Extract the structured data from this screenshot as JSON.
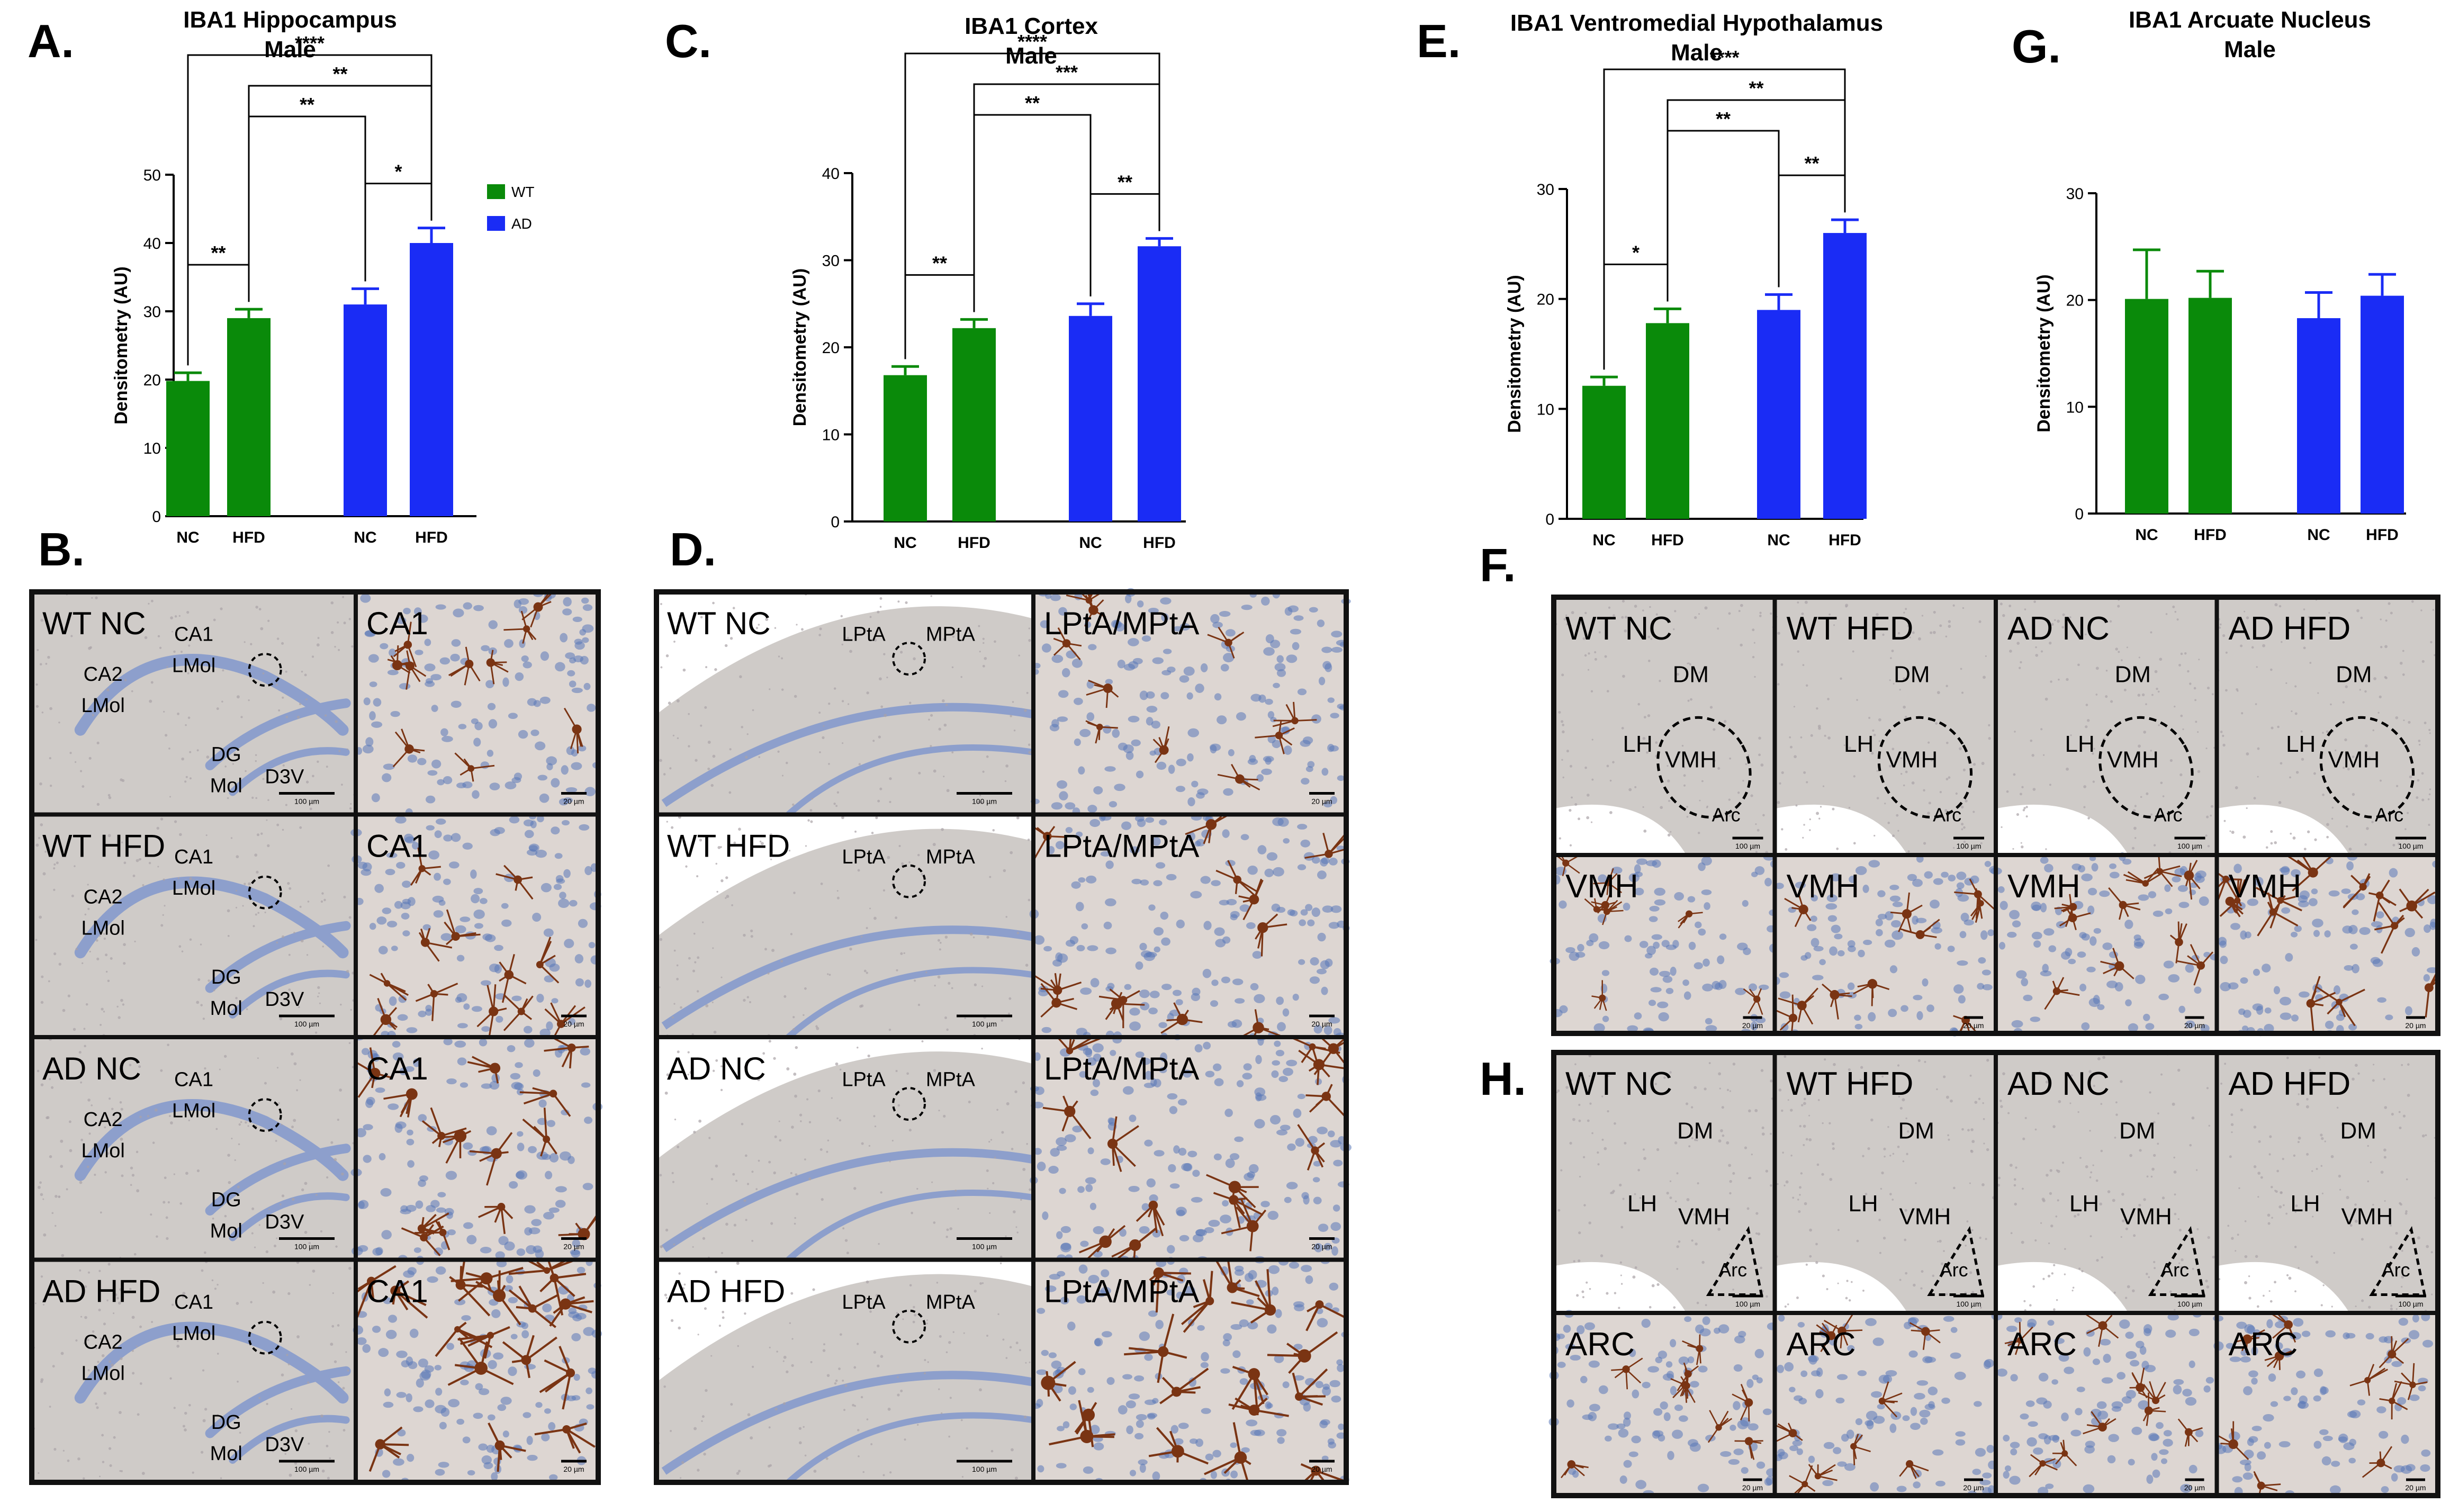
{
  "colors": {
    "wt": "#0a8a0a",
    "ad": "#1a2cf5",
    "axis": "#000000",
    "tissue_bg": "#cfcbc8",
    "tissue_blue": "#8d9fcc",
    "stain_brown": "#7a3413",
    "nucleus": "#5a78b8",
    "border": "#111111"
  },
  "chart_data": [
    {
      "id": "A",
      "panel_letter": "A.",
      "type": "bar",
      "title": [
        "IBA1 Hippocampus",
        "Male"
      ],
      "ylabel": "Densitometry (AU)",
      "ylim": [
        0,
        50
      ],
      "yticks": [
        0,
        10,
        20,
        30,
        40,
        50
      ],
      "categories": [
        "NC",
        "HFD",
        "NC",
        "HFD"
      ],
      "groups": [
        "WT",
        "WT",
        "AD",
        "AD"
      ],
      "values": [
        19.8,
        29.0,
        31.0,
        40.0
      ],
      "errors": [
        1.2,
        1.3,
        2.3,
        2.2
      ],
      "legend": [
        {
          "name": "WT",
          "group": "WT"
        },
        {
          "name": "AD",
          "group": "AD"
        }
      ],
      "significance": [
        {
          "pair": [
            0,
            1
          ],
          "label": "**"
        },
        {
          "pair": [
            2,
            3
          ],
          "label": "*"
        },
        {
          "pair": [
            1,
            2
          ],
          "label": "**"
        },
        {
          "pair": [
            1,
            3
          ],
          "label": "**"
        },
        {
          "pair": [
            0,
            3
          ],
          "label": "****"
        }
      ]
    },
    {
      "id": "C",
      "panel_letter": "C.",
      "type": "bar",
      "title": [
        "IBA1 Cortex",
        "Male"
      ],
      "ylabel": "Densitometry (AU)",
      "ylim": [
        0,
        40
      ],
      "yticks": [
        0,
        10,
        20,
        30,
        40
      ],
      "categories": [
        "NC",
        "HFD",
        "NC",
        "HFD"
      ],
      "groups": [
        "WT",
        "WT",
        "AD",
        "AD"
      ],
      "values": [
        16.8,
        22.2,
        23.6,
        31.6
      ],
      "errors": [
        1.0,
        1.0,
        1.4,
        0.9
      ],
      "legend": [],
      "significance": [
        {
          "pair": [
            0,
            1
          ],
          "label": "**"
        },
        {
          "pair": [
            2,
            3
          ],
          "label": "**"
        },
        {
          "pair": [
            1,
            2
          ],
          "label": "**"
        },
        {
          "pair": [
            1,
            3
          ],
          "label": "***"
        },
        {
          "pair": [
            0,
            3
          ],
          "label": "****"
        }
      ]
    },
    {
      "id": "E",
      "panel_letter": "E.",
      "type": "bar",
      "title": [
        "IBA1 Ventromedial Hypothalamus",
        "Male"
      ],
      "ylabel": "Densitometry (AU)",
      "ylim": [
        0,
        30
      ],
      "yticks": [
        0,
        10,
        20,
        30
      ],
      "categories": [
        "NC",
        "HFD",
        "NC",
        "HFD"
      ],
      "groups": [
        "WT",
        "WT",
        "AD",
        "AD"
      ],
      "values": [
        12.1,
        17.8,
        19.0,
        26.0
      ],
      "errors": [
        0.8,
        1.3,
        1.4,
        1.2
      ],
      "legend": [],
      "significance": [
        {
          "pair": [
            0,
            1
          ],
          "label": "*"
        },
        {
          "pair": [
            2,
            3
          ],
          "label": "**"
        },
        {
          "pair": [
            1,
            2
          ],
          "label": "**"
        },
        {
          "pair": [
            1,
            3
          ],
          "label": "**"
        },
        {
          "pair": [
            0,
            3
          ],
          "label": "****"
        }
      ]
    },
    {
      "id": "G",
      "panel_letter": "G.",
      "type": "bar",
      "title": [
        "IBA1 Arcuate Nucleus",
        "Male"
      ],
      "ylabel": "Densitometry (AU)",
      "ylim": [
        0,
        30
      ],
      "yticks": [
        0,
        10,
        20,
        30
      ],
      "categories": [
        "NC",
        "HFD",
        "NC",
        "HFD"
      ],
      "groups": [
        "WT",
        "WT",
        "AD",
        "AD"
      ],
      "values": [
        20.1,
        20.2,
        18.3,
        20.4
      ],
      "errors": [
        4.6,
        2.5,
        2.4,
        2.0
      ],
      "legend": [],
      "significance": []
    }
  ],
  "micrographs": [
    {
      "id": "B",
      "panel_letter": "B.",
      "rows": [
        {
          "label": "WT NC",
          "inset_label": "CA1",
          "annotations": [
            "CA1",
            "LMol",
            "CA2",
            "LMol",
            "DG",
            "Mol",
            "D3V"
          ],
          "scale": "100 µm",
          "inset_scale": "20 µm",
          "stain": 0.9
        },
        {
          "label": "WT HFD",
          "inset_label": "CA1",
          "annotations": [
            "CA1",
            "LMol",
            "CA2",
            "LMol",
            "DG",
            "Mol",
            "D3V"
          ],
          "scale": "100 µm",
          "inset_scale": "20 µm",
          "stain": 1.2
        },
        {
          "label": "AD NC",
          "inset_label": "CA1",
          "annotations": [
            "CA1",
            "LMol",
            "CA2",
            "LMol",
            "DG",
            "Mol",
            "D3V"
          ],
          "scale": "100 µm",
          "inset_scale": "20 µm",
          "stain": 1.5
        },
        {
          "label": "AD HFD",
          "inset_label": "CA1",
          "annotations": [
            "CA1",
            "LMol",
            "CA2",
            "LMol",
            "DG",
            "Mol",
            "D3V"
          ],
          "scale": "100 µm",
          "inset_scale": "20 µm",
          "stain": 2.0
        }
      ]
    },
    {
      "id": "D",
      "panel_letter": "D.",
      "rows": [
        {
          "label": "WT NC",
          "inset_label": "LPtA/MPtA",
          "annotations": [
            "LPtA",
            "MPtA"
          ],
          "scale": "100 µm",
          "inset_scale": "20 µm",
          "stain": 0.9
        },
        {
          "label": "WT HFD",
          "inset_label": "LPtA/MPtA",
          "annotations": [
            "LPtA",
            "MPtA"
          ],
          "scale": "100 µm",
          "inset_scale": "20 µm",
          "stain": 1.2
        },
        {
          "label": "AD NC",
          "inset_label": "LPtA/MPtA",
          "annotations": [
            "LPtA",
            "MPtA"
          ],
          "scale": "100 µm",
          "inset_scale": "20 µm",
          "stain": 1.5
        },
        {
          "label": "AD HFD",
          "inset_label": "LPtA/MPtA",
          "annotations": [
            "LPtA",
            "MPtA"
          ],
          "scale": "100 µm",
          "inset_scale": "20 µm",
          "stain": 2.0
        }
      ]
    },
    {
      "id": "F",
      "panel_letter": "F.",
      "columns": [
        {
          "label": "WT NC",
          "inset_label": "VMH",
          "annotations": [
            "DM",
            "LH",
            "VMH",
            "Arc"
          ],
          "scale": "100 µm",
          "inset_scale": "20 µm",
          "stain": 0.5
        },
        {
          "label": "WT HFD",
          "inset_label": "VMH",
          "annotations": [
            "DM",
            "LH",
            "VMH",
            "Arc"
          ],
          "scale": "100 µm",
          "inset_scale": "20 µm",
          "stain": 0.9
        },
        {
          "label": "AD NC",
          "inset_label": "VMH",
          "annotations": [
            "DM",
            "LH",
            "VMH",
            "Arc"
          ],
          "scale": "100 µm",
          "inset_scale": "20 µm",
          "stain": 0.9
        },
        {
          "label": "AD HFD",
          "inset_label": "VMH",
          "annotations": [
            "DM",
            "LH",
            "VMH",
            "Arc"
          ],
          "scale": "100 µm",
          "inset_scale": "20 µm",
          "stain": 1.3
        }
      ]
    },
    {
      "id": "H",
      "panel_letter": "H.",
      "columns": [
        {
          "label": "WT NC",
          "inset_label": "ARC",
          "annotations": [
            "DM",
            "LH",
            "VMH",
            "Arc"
          ],
          "scale": "100 µm",
          "inset_scale": "20 µm",
          "stain": 0.6
        },
        {
          "label": "WT HFD",
          "inset_label": "ARC",
          "annotations": [
            "DM",
            "LH",
            "VMH",
            "Arc"
          ],
          "scale": "100 µm",
          "inset_scale": "20 µm",
          "stain": 0.7
        },
        {
          "label": "AD NC",
          "inset_label": "ARC",
          "annotations": [
            "DM",
            "LH",
            "VMH",
            "Arc"
          ],
          "scale": "100 µm",
          "inset_scale": "20 µm",
          "stain": 0.7
        },
        {
          "label": "AD HFD",
          "inset_label": "ARC",
          "annotations": [
            "DM",
            "LH",
            "VMH",
            "Arc"
          ],
          "scale": "100 µm",
          "inset_scale": "20 µm",
          "stain": 0.8
        }
      ]
    }
  ]
}
